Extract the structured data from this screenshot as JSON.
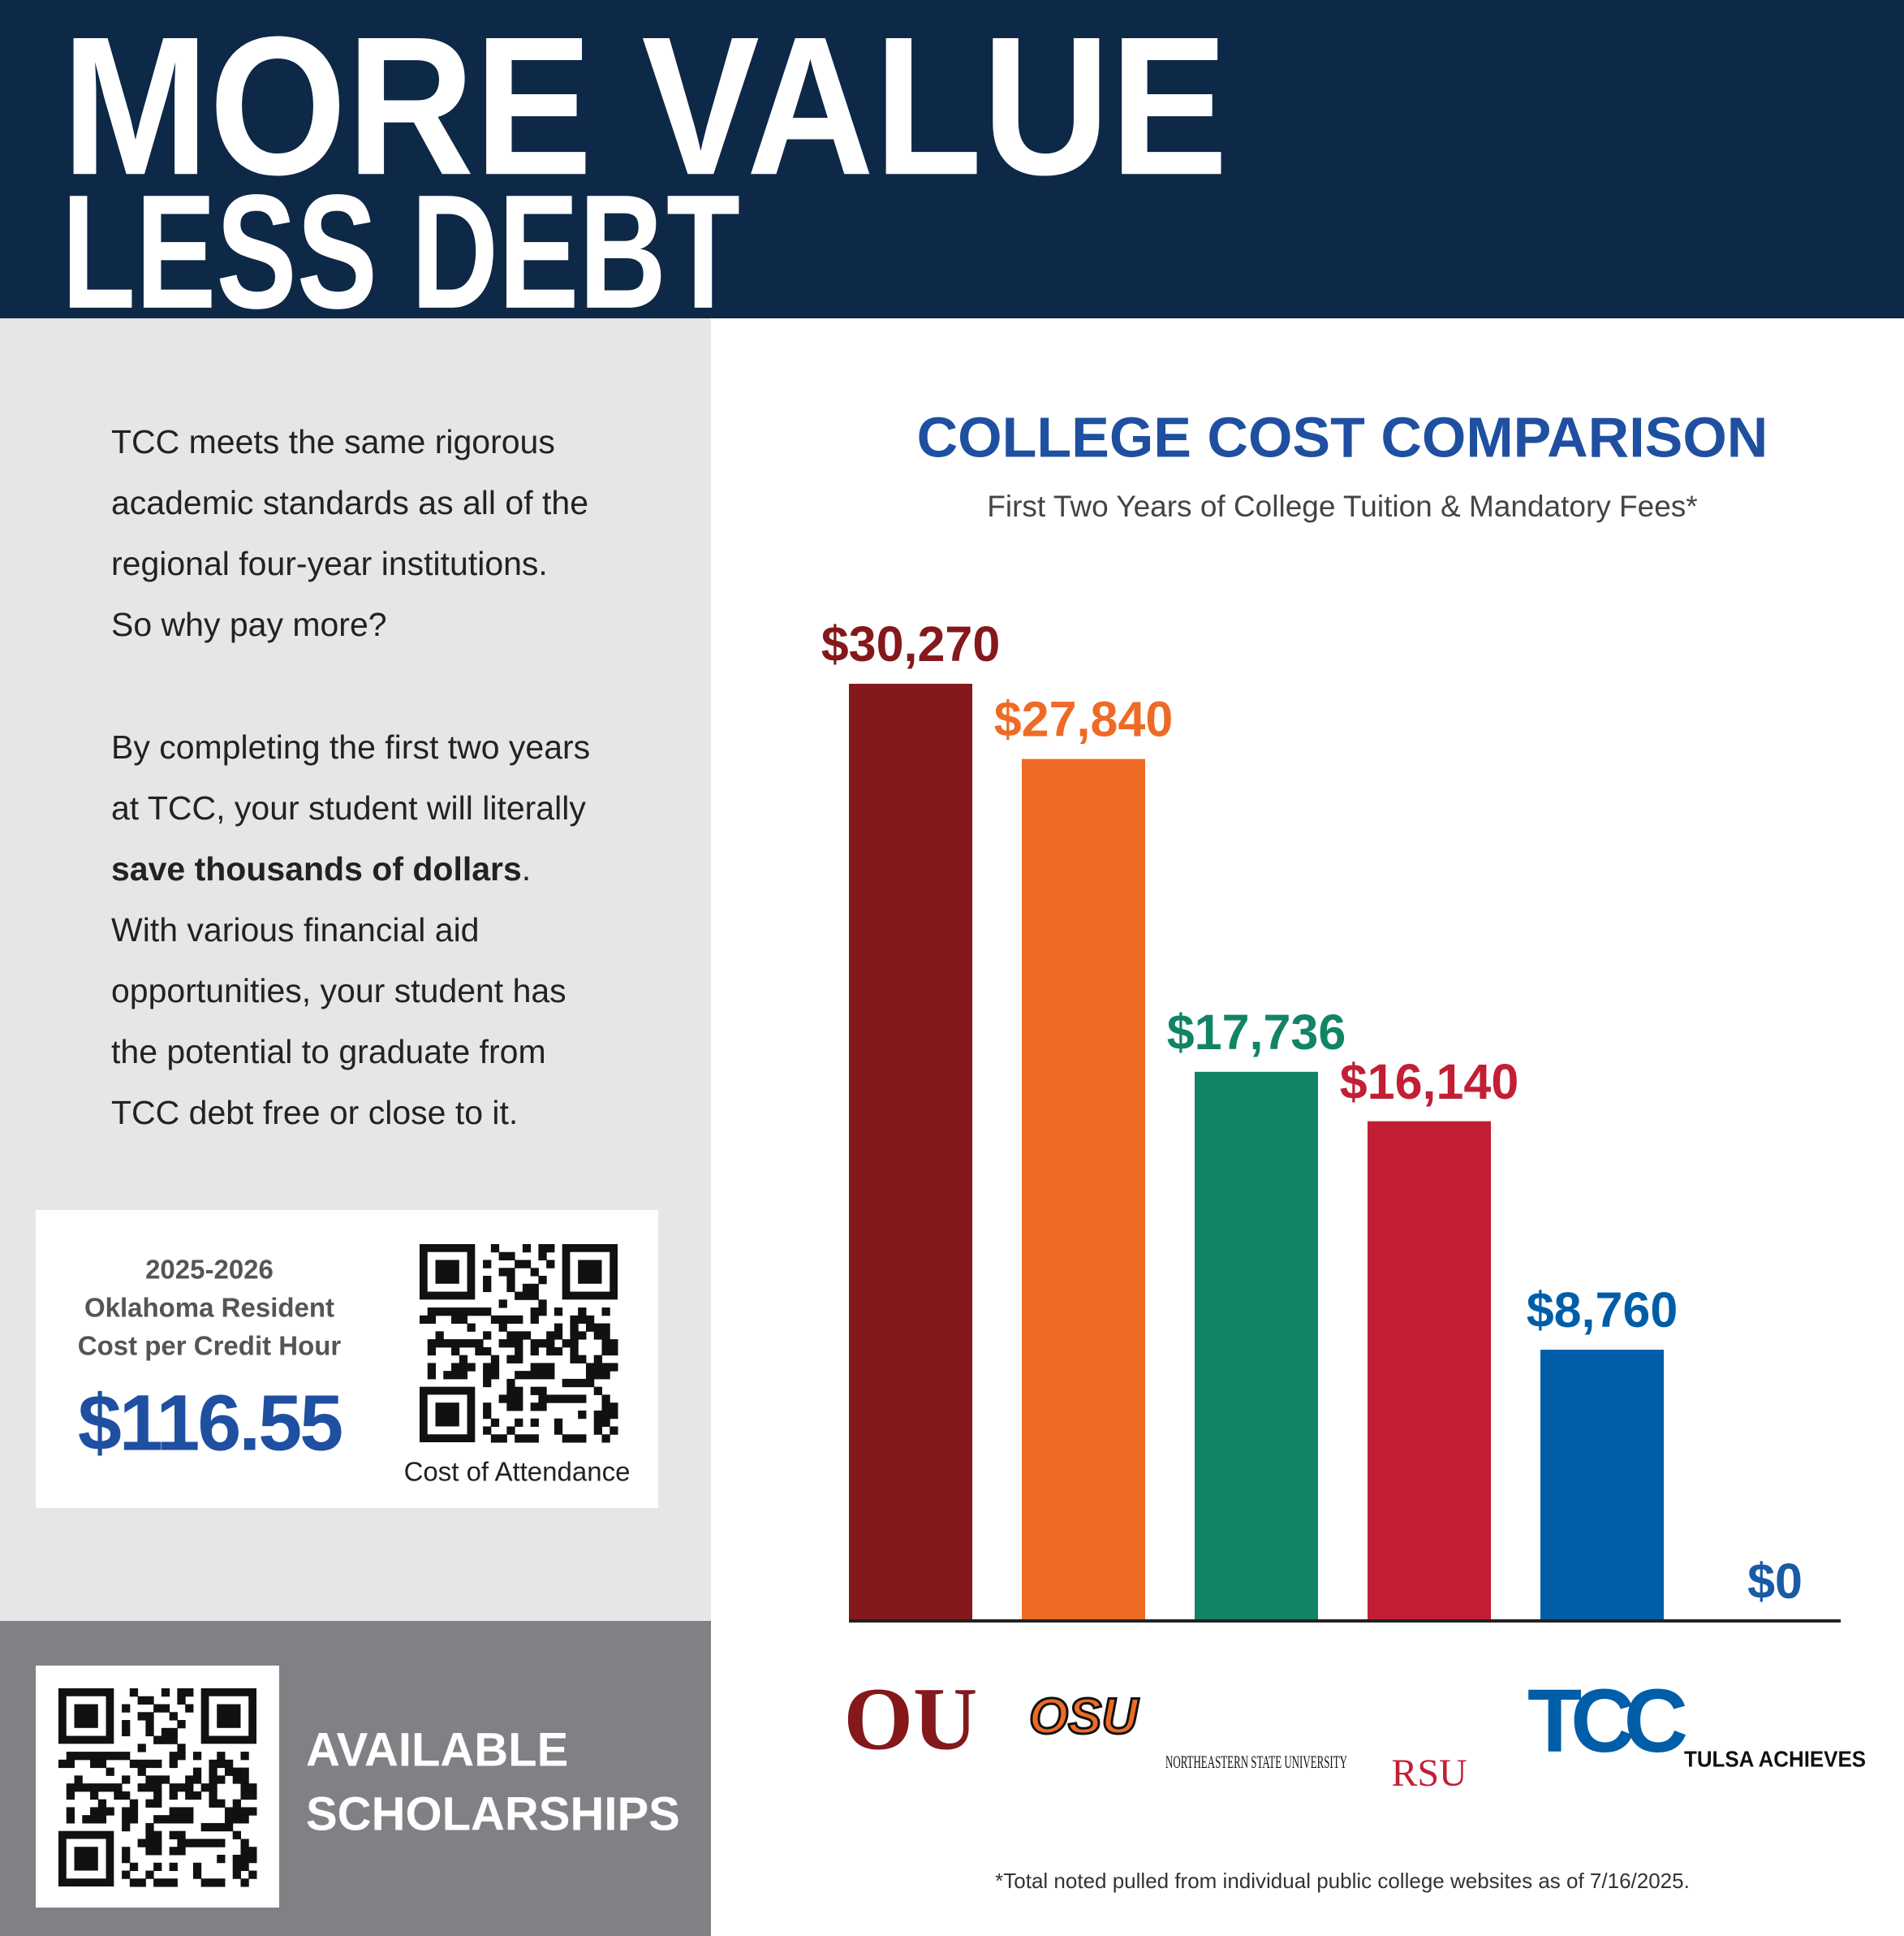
{
  "header": {
    "line1": "MORE VALUE",
    "line2": "LESS DEBT"
  },
  "intro": {
    "paragraph1": [
      "TCC meets the same rigorous",
      "academic standards as all of the",
      "regional four-year institutions.",
      "So why pay more?"
    ],
    "paragraph2": [
      "By completing the first two years",
      "at TCC, your student will literally",
      {
        "bold": "save thousands of dollars",
        "rest": "."
      },
      "With various financial aid",
      "opportunities, your student has",
      "the potential to graduate from",
      "TCC debt free or close to it."
    ]
  },
  "cost_box": {
    "year": "2025-2026",
    "line1": "Oklahoma Resident",
    "line2": "Cost per Credit Hour",
    "price": "$116.55",
    "qr_caption": "Cost of Attendance"
  },
  "scholarships": {
    "line1": "AVAILABLE",
    "line2": "SCHOLARSHIPS"
  },
  "chart_data": {
    "type": "bar",
    "title": "COLLEGE COST COMPARISON",
    "subtitle": "First Two Years of College Tuition & Mandatory Fees*",
    "categories": [
      "OU",
      "OSU",
      "NORTHEASTERN STATE UNIVERSITY",
      "RSU",
      "TCC",
      "TULSA ACHIEVES"
    ],
    "values": [
      30270,
      27840,
      17736,
      16140,
      8760,
      0
    ],
    "value_labels": [
      "$30,270",
      "$27,840",
      "$17,736",
      "$16,140",
      "$8,760",
      "$0"
    ],
    "colors": [
      "#84181a",
      "#ee6a25",
      "#128466",
      "#c21f35",
      "#005ea8",
      "#1a5aa6"
    ],
    "footnote": "*Total noted pulled from individual public college websites as of 7/16/2025."
  }
}
